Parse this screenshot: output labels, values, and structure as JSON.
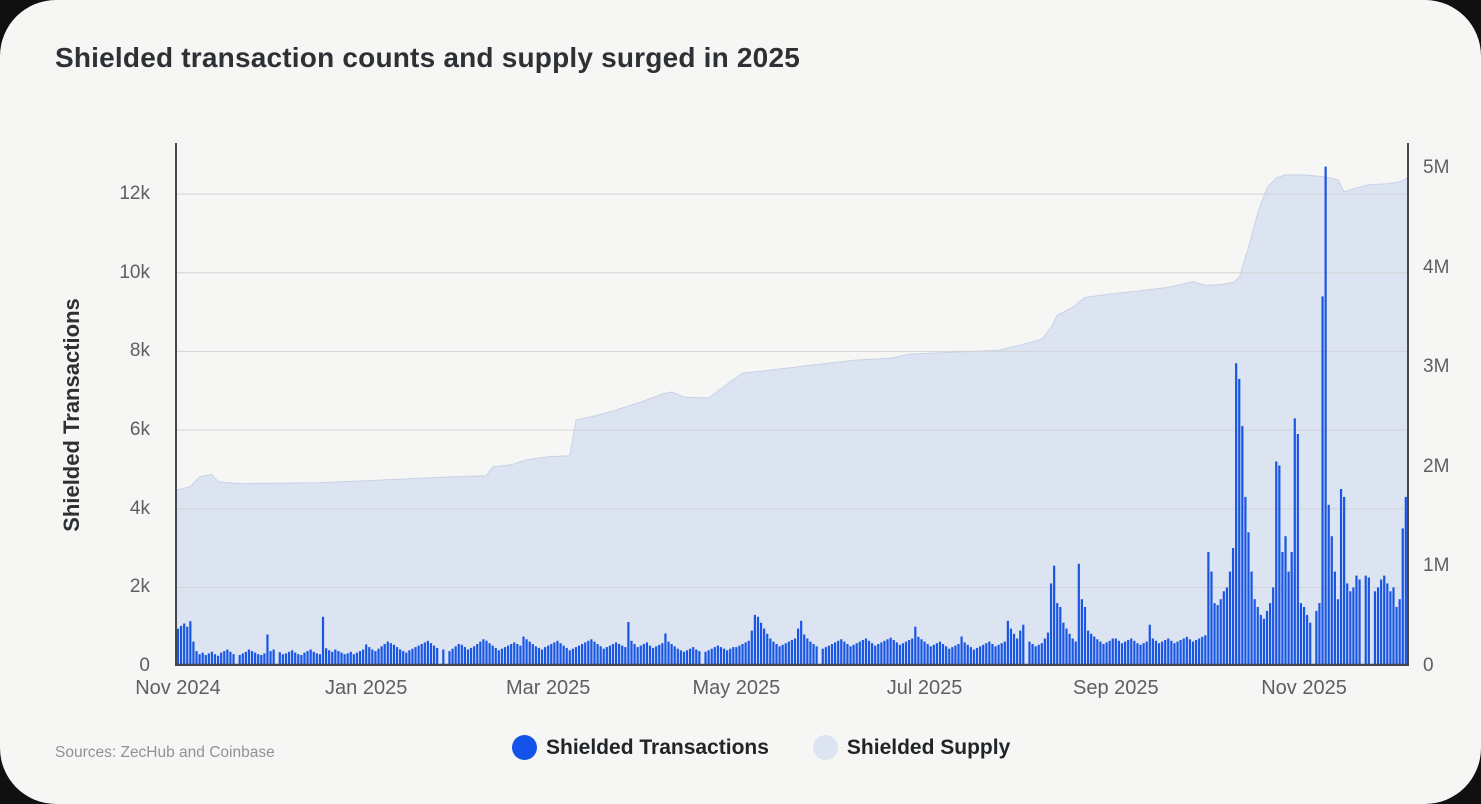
{
  "header": {
    "title": "Shielded transaction counts and supply surged in 2025"
  },
  "footer": {
    "source": "Sources: ZecHub and Coinbase"
  },
  "legend": {
    "items": [
      {
        "label": "Shielded Transactions",
        "color": "#1453ea"
      },
      {
        "label": "Shielded Supply",
        "color": "#dde4f2"
      }
    ]
  },
  "axes": {
    "y_left": {
      "title": "Shielded Transactions",
      "tick_labels": [
        "0",
        "2k",
        "4k",
        "6k",
        "8k",
        "10k",
        "12k"
      ],
      "tick_values": [
        0,
        2000,
        4000,
        6000,
        8000,
        10000,
        12000
      ]
    },
    "y_right": {
      "tick_labels": [
        "0",
        "1M",
        "2M",
        "3M",
        "4M",
        "5M"
      ],
      "tick_values_millions": [
        0,
        1,
        2,
        3,
        4,
        5
      ]
    },
    "x": {
      "tick_labels": [
        "Nov 2024",
        "Jan 2025",
        "Mar 2025",
        "May 2025",
        "Jul 2025",
        "Sep 2025",
        "Nov 2025"
      ],
      "tick_day_index": [
        0,
        61,
        120,
        181,
        242,
        304,
        365
      ]
    }
  },
  "colors": {
    "card_bg": "#f6f6f4",
    "bar": "#1956e4",
    "area_fill": "#dce3f1",
    "area_edge": "#c9d2e7",
    "gridline": "#d2d3d6",
    "axis_line": "#44474b",
    "tick_text": "#5c5f64",
    "title_text": "#2d3034",
    "legend_text": "#212428",
    "source_text": "#8f9297"
  },
  "chart_data": {
    "type": "bar",
    "title": "Shielded transaction counts and supply surged in 2025",
    "frequency": "daily",
    "start_date": "2024-11-01",
    "end_date": "2025-12-05",
    "grid": "horizontal",
    "legend_position": "bottom",
    "ylim_left": [
      0,
      13300
    ],
    "ylabel_left": "Shielded Transactions",
    "ylim_right_millions": [
      0,
      5.25
    ],
    "months": [
      "Nov 2024",
      "Dec 2024",
      "Jan 2025",
      "Feb 2025",
      "Mar 2025",
      "Apr 2025",
      "May 2025",
      "Jun 2025",
      "Jul 2025",
      "Aug 2025",
      "Sep 2025",
      "Oct 2025",
      "Nov 2025",
      "Dec 2025"
    ],
    "series": [
      {
        "name": "Shielded Transactions",
        "type": "bar",
        "axis": "left",
        "unit": "transactions per day",
        "values_by_month": [
          [
            950,
            1020,
            1080,
            1000,
            1140,
            620,
            380,
            300,
            340,
            280,
            320,
            360,
            300,
            260,
            340,
            380,
            420,
            360,
            300,
            0,
            280,
            320,
            360,
            420,
            380,
            340,
            300,
            280,
            320,
            800
          ],
          [
            380,
            420,
            0,
            350,
            300,
            320,
            360,
            400,
            340,
            300,
            280,
            340,
            380,
            420,
            360,
            320,
            300,
            1250,
            450,
            400,
            360,
            420,
            380,
            340,
            300,
            320,
            360,
            300,
            340,
            380,
            420
          ],
          [
            550,
            480,
            420,
            380,
            440,
            500,
            560,
            620,
            580,
            540,
            480,
            420,
            380,
            340,
            400,
            440,
            480,
            520,
            560,
            600,
            640,
            580,
            520,
            460,
            0,
            420,
            0,
            380,
            440,
            500,
            560
          ],
          [
            540,
            480,
            420,
            460,
            500,
            560,
            620,
            680,
            640,
            580,
            520,
            460,
            400,
            440,
            480,
            520,
            560,
            600,
            560,
            520,
            750,
            680,
            620,
            560,
            500,
            460,
            420,
            480
          ],
          [
            520,
            560,
            600,
            640,
            580,
            520,
            460,
            400,
            440,
            480,
            520,
            560,
            600,
            640,
            680,
            620,
            560,
            500,
            440,
            480,
            520,
            560,
            600,
            560,
            520,
            480,
            1120,
            640,
            560,
            480,
            520
          ],
          [
            560,
            600,
            520,
            460,
            500,
            540,
            580,
            830,
            620,
            560,
            500,
            440,
            400,
            360,
            400,
            440,
            480,
            420,
            380,
            0,
            360,
            400,
            440,
            480,
            520,
            480,
            440,
            400,
            440,
            480
          ],
          [
            480,
            520,
            560,
            600,
            640,
            900,
            1300,
            1250,
            1100,
            950,
            820,
            700,
            620,
            560,
            500,
            540,
            580,
            620,
            660,
            700,
            950,
            1150,
            800,
            700,
            620,
            560,
            500,
            0,
            440,
            480,
            520
          ],
          [
            560,
            600,
            640,
            680,
            620,
            560,
            500,
            540,
            580,
            620,
            660,
            700,
            640,
            580,
            520,
            560,
            600,
            640,
            680,
            720,
            660,
            600,
            540,
            580,
            620,
            660,
            700,
            1000,
            740,
            680
          ],
          [
            620,
            560,
            500,
            540,
            580,
            620,
            560,
            500,
            440,
            480,
            520,
            560,
            750,
            600,
            540,
            480,
            420,
            460,
            500,
            540,
            580,
            620,
            560,
            500,
            540,
            580,
            620,
            1150,
            950,
            820,
            700
          ],
          [
            900,
            1050,
            0,
            620,
            560,
            500,
            540,
            580,
            700,
            850,
            2100,
            2550,
            1600,
            1500,
            1100,
            950,
            820,
            700,
            620,
            2600,
            1700,
            1500,
            900,
            820,
            750,
            680,
            620,
            560,
            600,
            640,
            700
          ],
          [
            700,
            640,
            580,
            620,
            660,
            700,
            640,
            580,
            540,
            580,
            620,
            1050,
            700,
            640,
            580,
            620,
            660,
            700,
            640,
            580,
            620,
            660,
            700,
            740,
            680,
            620,
            660,
            700,
            740,
            780
          ],
          [
            2900,
            2400,
            1600,
            1550,
            1700,
            1900,
            2000,
            2400,
            3000,
            7700,
            7300,
            6100,
            4300,
            3400,
            2400,
            1700,
            1500,
            1300,
            1200,
            1400,
            1600,
            2000,
            5200,
            5100,
            2900,
            3300,
            2400,
            2900,
            6300,
            5900,
            1600
          ],
          [
            1500,
            1300,
            1100,
            0,
            1400,
            1600,
            9400,
            12700,
            4100,
            3300,
            2400,
            1700,
            4500,
            4300,
            2100,
            1900,
            2000,
            2300,
            2200,
            0,
            2300,
            2250,
            0,
            1900,
            2000,
            2200,
            2300,
            2100,
            1900,
            2000
          ],
          [
            1500,
            1700,
            3500,
            4300,
            1400
          ]
        ]
      },
      {
        "name": "Shielded Supply",
        "type": "area",
        "axis": "right",
        "unit": "millions of ZEC",
        "points_day_value_millions": [
          [
            0,
            1.77
          ],
          [
            4,
            1.8
          ],
          [
            7,
            1.9
          ],
          [
            11,
            1.92
          ],
          [
            13,
            1.85
          ],
          [
            20,
            1.83
          ],
          [
            45,
            1.84
          ],
          [
            61,
            1.86
          ],
          [
            75,
            1.88
          ],
          [
            90,
            1.9
          ],
          [
            100,
            1.91
          ],
          [
            102,
            2.0
          ],
          [
            108,
            2.02
          ],
          [
            113,
            2.07
          ],
          [
            120,
            2.1
          ],
          [
            127,
            2.11
          ],
          [
            129,
            2.47
          ],
          [
            135,
            2.51
          ],
          [
            141,
            2.56
          ],
          [
            151,
            2.66
          ],
          [
            157,
            2.73
          ],
          [
            160,
            2.75
          ],
          [
            164,
            2.7
          ],
          [
            172,
            2.69
          ],
          [
            178,
            2.83
          ],
          [
            183,
            2.94
          ],
          [
            192,
            2.97
          ],
          [
            200,
            3.0
          ],
          [
            208,
            3.03
          ],
          [
            219,
            3.07
          ],
          [
            231,
            3.09
          ],
          [
            237,
            3.13
          ],
          [
            251,
            3.15
          ],
          [
            266,
            3.17
          ],
          [
            273,
            3.22
          ],
          [
            280,
            3.28
          ],
          [
            283,
            3.4
          ],
          [
            285,
            3.52
          ],
          [
            290,
            3.6
          ],
          [
            294,
            3.7
          ],
          [
            304,
            3.74
          ],
          [
            313,
            3.77
          ],
          [
            321,
            3.8
          ],
          [
            329,
            3.86
          ],
          [
            333,
            3.82
          ],
          [
            338,
            3.83
          ],
          [
            342,
            3.85
          ],
          [
            344,
            3.9
          ],
          [
            347,
            4.2
          ],
          [
            350,
            4.55
          ],
          [
            353,
            4.8
          ],
          [
            356,
            4.9
          ],
          [
            359,
            4.93
          ],
          [
            365,
            4.93
          ],
          [
            372,
            4.91
          ],
          [
            376,
            4.88
          ],
          [
            378,
            4.76
          ],
          [
            382,
            4.8
          ],
          [
            386,
            4.83
          ],
          [
            392,
            4.84
          ],
          [
            396,
            4.86
          ],
          [
            399,
            4.91
          ]
        ]
      }
    ]
  }
}
